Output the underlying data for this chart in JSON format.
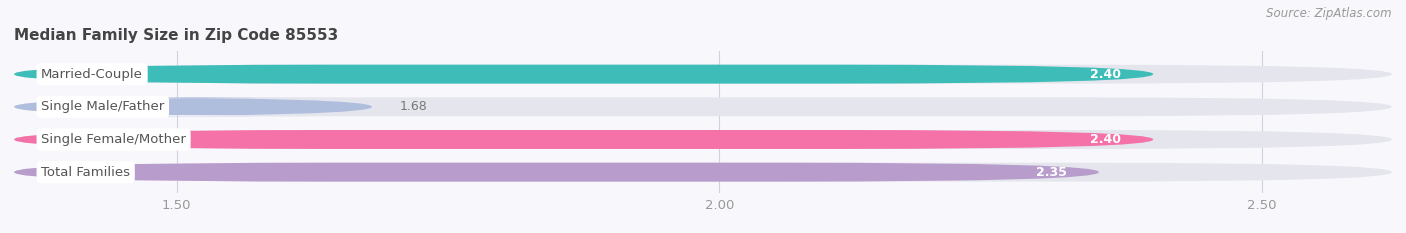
{
  "title": "Median Family Size in Zip Code 85553",
  "source": "Source: ZipAtlas.com",
  "categories": [
    "Married-Couple",
    "Single Male/Father",
    "Single Female/Mother",
    "Total Families"
  ],
  "values": [
    2.4,
    1.68,
    2.4,
    2.35
  ],
  "bar_colors": [
    "#3dbcb8",
    "#b0bedd",
    "#f472a8",
    "#b89ccb"
  ],
  "bar_bg_color": "#e5e5ee",
  "xlim": [
    1.35,
    2.62
  ],
  "xticks": [
    1.5,
    2.0,
    2.5
  ],
  "bar_height": 0.58,
  "label_fontsize": 9.5,
  "value_fontsize": 9,
  "title_fontsize": 11,
  "source_fontsize": 8.5,
  "background_color": "#f8f8fc",
  "label_bg_color": "#ffffff",
  "label_text_color": "#555555",
  "value_color_inside": "#ffffff",
  "value_color_outside": "#777777"
}
